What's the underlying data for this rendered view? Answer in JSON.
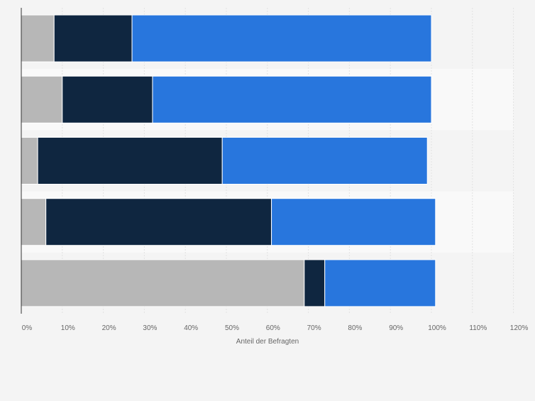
{
  "chart_data": {
    "type": "bar",
    "orientation": "horizontal",
    "stacked": true,
    "categories": [
      "",
      "",
      "",
      "",
      ""
    ],
    "series": [
      {
        "values": [
          8,
          10,
          4,
          6,
          69
        ],
        "color": "#b7b7b7"
      },
      {
        "values": [
          19,
          22,
          45,
          55,
          5
        ],
        "color": "#0f2640"
      },
      {
        "values": [
          73,
          68,
          50,
          40,
          27
        ],
        "color": "#2876dd"
      }
    ],
    "xlim": [
      0,
      120
    ],
    "xticks": [
      "0%",
      "10%",
      "20%",
      "30%",
      "40%",
      "50%",
      "60%",
      "70%",
      "80%",
      "90%",
      "100%",
      "110%",
      "120%"
    ],
    "xlabel": "Anteil der Befragten",
    "grid": true,
    "legend": "none"
  }
}
